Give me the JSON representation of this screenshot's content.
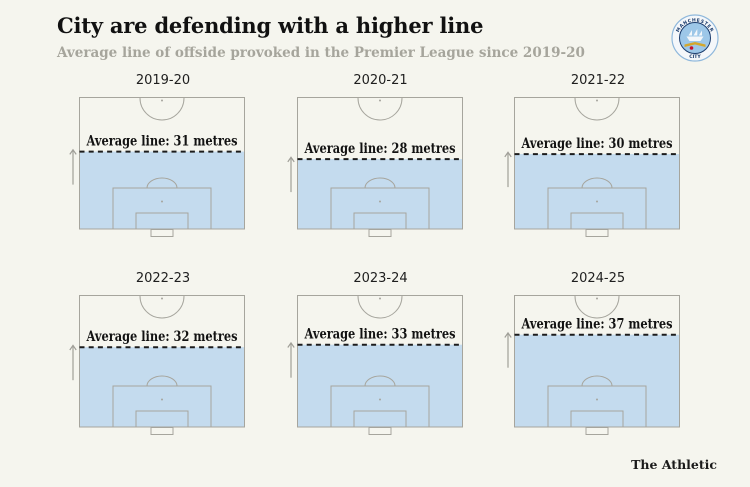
{
  "header": {
    "title": "City are defending with a higher line",
    "subtitle": "Average line of offside provoked in the Premier League since 2019-20",
    "badge": {
      "name": "manchester-city-crest",
      "top_text": "MANCHESTER",
      "bottom_text": "CITY"
    }
  },
  "footer": {
    "brand": "The Athletic"
  },
  "colors": {
    "page_bg": "#f5f5ee",
    "zone_fill": "#c4dbee",
    "pitch_line": "#a6a59d",
    "average_line": "#1c1c1c",
    "title_text": "#111111",
    "subtitle_text": "#a6a59c",
    "arrow": "#a09f98",
    "badge_navy": "#1b3c6d",
    "badge_sky": "#9dc7e8"
  },
  "chart_data": {
    "type": "bar",
    "variant": "football-pitch-small-multiples",
    "title": "City are defending with a higher line",
    "subtitle": "Average line of offside provoked in the Premier League since 2019-20",
    "categories": [
      "2019-20",
      "2020-21",
      "2021-22",
      "2022-23",
      "2023-24",
      "2024-25"
    ],
    "values": [
      31,
      28,
      30,
      32,
      33,
      37
    ],
    "unit": "metres",
    "ylim": [
      0,
      52.5
    ],
    "pitch_view_depth_metres": 52.5,
    "layout": {
      "columns": 3,
      "rows": 2,
      "legend": "none",
      "grid": "off"
    },
    "panels": [
      {
        "season": "2019-20",
        "metres": 31,
        "label": "Average line: 31 metres"
      },
      {
        "season": "2020-21",
        "metres": 28,
        "label": "Average line: 28 metres"
      },
      {
        "season": "2021-22",
        "metres": 30,
        "label": "Average line: 30 metres"
      },
      {
        "season": "2022-23",
        "metres": 32,
        "label": "Average line: 32 metres"
      },
      {
        "season": "2023-24",
        "metres": 33,
        "label": "Average line: 33 metres"
      },
      {
        "season": "2024-25",
        "metres": 37,
        "label": "Average line: 37 metres"
      }
    ]
  }
}
